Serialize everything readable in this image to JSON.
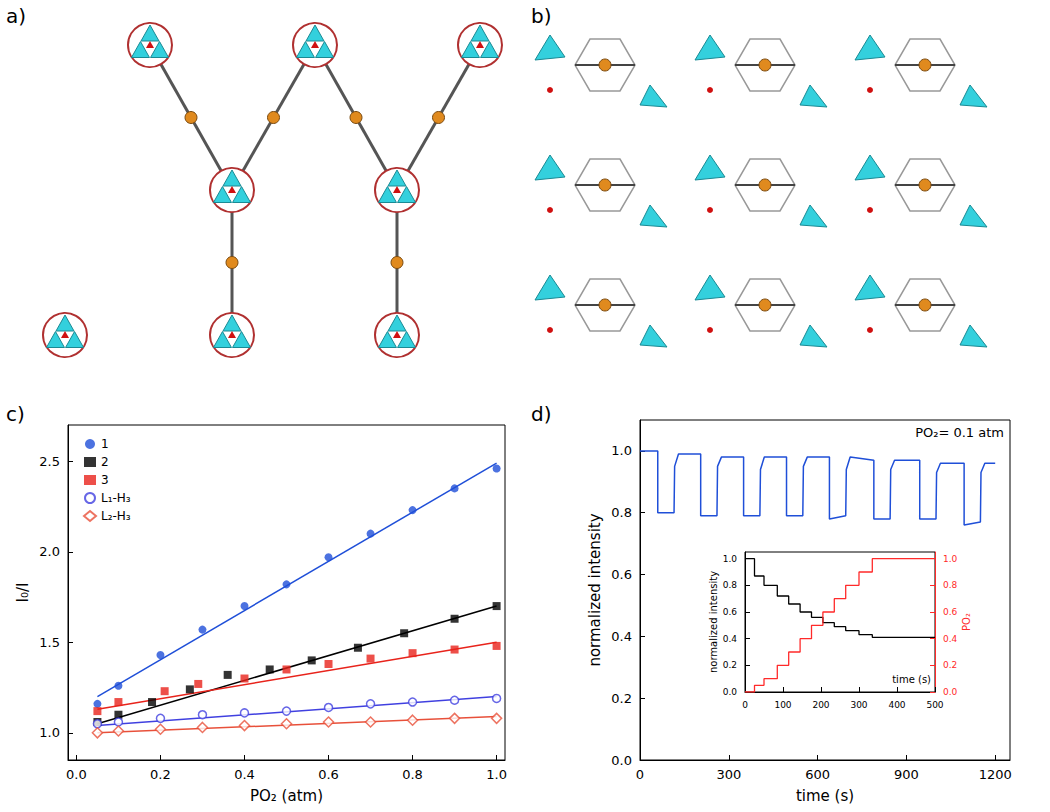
{
  "chart_data": [
    {
      "type": "structure",
      "title": "a)"
    },
    {
      "type": "structure",
      "title": "b)"
    },
    {
      "type": "scatter",
      "title": "c)",
      "x_label": "PO₂ (atm)",
      "y_label": "I₀/I",
      "xlim": [
        -0.02,
        1.02
      ],
      "xticks": [
        {
          "value": 0,
          "label": "0.0"
        },
        0.2,
        0.4,
        0.6,
        0.8,
        {
          "value": 1,
          "label": "1.0"
        }
      ],
      "ylim": [
        0.85,
        2.7
      ],
      "yticks": [
        {
          "value": 1,
          "label": "1.0"
        },
        1.5,
        {
          "value": 2,
          "label": "2.0"
        },
        2.5
      ],
      "grid": false,
      "legend": "upper left",
      "series": [
        {
          "name": "1",
          "color": "#1f4fd8",
          "marker": "circle",
          "x": [
            0.05,
            0.1,
            0.2,
            0.3,
            0.4,
            0.5,
            0.6,
            0.7,
            0.8,
            0.9,
            1.0
          ],
          "values": [
            1.16,
            1.26,
            1.43,
            1.57,
            1.7,
            1.82,
            1.97,
            2.1,
            2.23,
            2.35,
            2.46
          ],
          "fit": {
            "x": [
              0.05,
              1.0
            ],
            "values": [
              1.2,
              2.49
            ]
          }
        },
        {
          "name": "2",
          "color": "#000000",
          "marker": "square",
          "x": [
            0.05,
            0.1,
            0.18,
            0.27,
            0.36,
            0.46,
            0.56,
            0.67,
            0.78,
            0.9,
            1.0
          ],
          "values": [
            1.06,
            1.1,
            1.17,
            1.24,
            1.32,
            1.35,
            1.4,
            1.47,
            1.55,
            1.63,
            1.7
          ],
          "fit": {
            "x": [
              0.05,
              1.0
            ],
            "values": [
              1.05,
              1.7
            ]
          }
        },
        {
          "name": "3",
          "color": "#e8231b",
          "marker": "square",
          "x": [
            0.05,
            0.1,
            0.21,
            0.29,
            0.4,
            0.5,
            0.6,
            0.7,
            0.8,
            0.9,
            1.0
          ],
          "values": [
            1.12,
            1.17,
            1.23,
            1.27,
            1.3,
            1.35,
            1.38,
            1.41,
            1.44,
            1.46,
            1.48
          ],
          "fit": {
            "x": [
              0.05,
              1.0
            ],
            "values": [
              1.13,
              1.5
            ]
          }
        },
        {
          "name": "L₁-H₃",
          "color": "#4040e0",
          "marker": "open_circle",
          "x": [
            0.05,
            0.1,
            0.2,
            0.3,
            0.4,
            0.5,
            0.6,
            0.7,
            0.8,
            0.9,
            1.0
          ],
          "values": [
            1.05,
            1.06,
            1.08,
            1.1,
            1.11,
            1.12,
            1.14,
            1.16,
            1.17,
            1.18,
            1.19
          ],
          "fit": {
            "x": [
              0.05,
              1.0
            ],
            "values": [
              1.04,
              1.2
            ]
          }
        },
        {
          "name": "L₂-H₃",
          "color": "#e8503a",
          "marker": "open_diamond",
          "x": [
            0.05,
            0.1,
            0.2,
            0.3,
            0.4,
            0.5,
            0.6,
            0.7,
            0.8,
            0.9,
            1.0
          ],
          "values": [
            1.0,
            1.01,
            1.02,
            1.03,
            1.04,
            1.05,
            1.06,
            1.06,
            1.07,
            1.08,
            1.08
          ],
          "fit": {
            "x": [
              0.05,
              1.0
            ],
            "values": [
              1.0,
              1.09
            ]
          }
        }
      ]
    },
    {
      "type": "line",
      "title": "d)",
      "x_label": "time (s)",
      "y_label": "normalized intensity",
      "annotation": "PO₂= 0.1 atm",
      "xlim": [
        0,
        1250
      ],
      "xticks": [
        0,
        300,
        600,
        900,
        1200
      ],
      "ylim": [
        0,
        1.1
      ],
      "yticks": [
        {
          "value": 0,
          "label": "0.0"
        },
        0.2,
        0.4,
        0.6,
        0.8,
        {
          "value": 1,
          "label": "1.0"
        }
      ],
      "grid": false,
      "series": [
        {
          "color": "#1f4fd8",
          "line_style": "solid",
          "x": [
            0,
            60,
            60,
            115,
            117,
            130,
            205,
            205,
            260,
            262,
            275,
            350,
            350,
            405,
            407,
            420,
            495,
            495,
            550,
            552,
            565,
            640,
            640,
            695,
            697,
            710,
            790,
            790,
            845,
            847,
            860,
            945,
            945,
            1000,
            1002,
            1015,
            1095,
            1095,
            1150,
            1152,
            1165,
            1200
          ],
          "values": [
            1.0,
            1.0,
            0.8,
            0.8,
            0.95,
            0.99,
            0.99,
            0.79,
            0.79,
            0.95,
            0.98,
            0.98,
            0.79,
            0.79,
            0.94,
            0.98,
            0.98,
            0.79,
            0.79,
            0.95,
            0.98,
            0.98,
            0.78,
            0.79,
            0.94,
            0.98,
            0.97,
            0.78,
            0.78,
            0.94,
            0.97,
            0.97,
            0.78,
            0.78,
            0.93,
            0.96,
            0.96,
            0.76,
            0.77,
            0.93,
            0.96,
            0.96
          ]
        }
      ],
      "inset": {
        "type": "line",
        "x_label": "time (s)",
        "y_label": "normalized intensity",
        "y2_label": "PO₂",
        "xlim": [
          0,
          500
        ],
        "xticks": [
          0,
          100,
          200,
          300,
          400,
          500
        ],
        "ylim": [
          0,
          1.05
        ],
        "yticks": [
          {
            "value": 0,
            "label": "0.0"
          },
          0.2,
          0.4,
          0.6,
          0.8,
          {
            "value": 1,
            "label": "1.0"
          }
        ],
        "y2lim": [
          0,
          1.05
        ],
        "y2ticks": [
          {
            "value": 0,
            "label": "0.0"
          },
          0.2,
          0.4,
          0.6,
          0.8,
          {
            "value": 1,
            "label": "1.0"
          }
        ],
        "grid": false,
        "series": [
          {
            "color": "#000000",
            "line_style": "step",
            "x": [
              0,
              25,
              50,
              85,
              115,
              145,
              175,
              205,
              235,
              265,
              300,
              335,
              500
            ],
            "values": [
              1.0,
              0.87,
              0.8,
              0.72,
              0.66,
              0.6,
              0.56,
              0.52,
              0.49,
              0.46,
              0.43,
              0.41,
              0.41
            ]
          },
          {
            "color": "#ff2a2a",
            "line_style": "step",
            "axis": "y2",
            "x": [
              0,
              25,
              50,
              85,
              115,
              145,
              175,
              205,
              235,
              265,
              300,
              335,
              500
            ],
            "values": [
              0,
              0.05,
              0.1,
              0.2,
              0.3,
              0.4,
              0.5,
              0.6,
              0.7,
              0.8,
              0.9,
              1.0,
              1.0
            ]
          }
        ]
      }
    }
  ]
}
